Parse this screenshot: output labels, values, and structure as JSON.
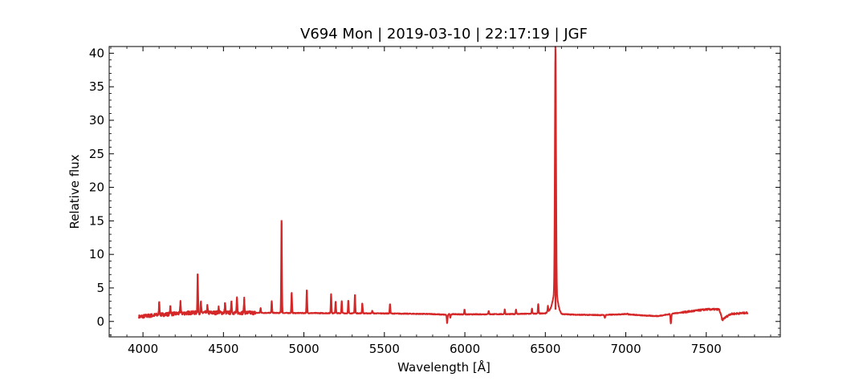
{
  "chart_data": {
    "type": "line",
    "title": "V694 Mon | 2019-03-10 | 22:17:19 | JGF",
    "xlabel": "Wavelength [Å]",
    "ylabel": "Relative flux",
    "xlim": [
      3790,
      7960
    ],
    "ylim": [
      -2.3,
      41
    ],
    "xticks": [
      4000,
      4500,
      5000,
      5500,
      6000,
      6500,
      7000,
      7500
    ],
    "yticks": [
      0,
      5,
      10,
      15,
      20,
      25,
      30,
      35,
      40
    ],
    "grid": false,
    "legend": "none",
    "series": [
      {
        "color": "#d62728",
        "baseline": [
          [
            3975,
            0.7
          ],
          [
            4100,
            1.0
          ],
          [
            4300,
            1.3
          ],
          [
            4600,
            1.3
          ],
          [
            5000,
            1.25
          ],
          [
            5500,
            1.2
          ],
          [
            5800,
            1.1
          ],
          [
            5880,
            1.0
          ],
          [
            5900,
            1.1
          ],
          [
            6000,
            1.05
          ],
          [
            6300,
            1.1
          ],
          [
            6500,
            1.2
          ],
          [
            6550,
            2.0
          ],
          [
            6600,
            1.1
          ],
          [
            6700,
            1.0
          ],
          [
            6850,
            0.95
          ],
          [
            7000,
            1.1
          ],
          [
            7100,
            0.9
          ],
          [
            7200,
            0.8
          ],
          [
            7300,
            1.2
          ],
          [
            7400,
            1.5
          ],
          [
            7500,
            1.8
          ],
          [
            7580,
            1.8
          ],
          [
            7600,
            0.3
          ],
          [
            7650,
            1.1
          ],
          [
            7700,
            1.2
          ],
          [
            7760,
            1.3
          ]
        ],
        "emission_lines": [
          [
            4101,
            3.0
          ],
          [
            4170,
            2.4
          ],
          [
            4233,
            3.0
          ],
          [
            4340,
            7.1
          ],
          [
            4360,
            2.9
          ],
          [
            4400,
            2.3
          ],
          [
            4470,
            2.1
          ],
          [
            4510,
            2.8
          ],
          [
            4550,
            3.1
          ],
          [
            4584,
            3.5
          ],
          [
            4629,
            3.3
          ],
          [
            4731,
            2.0
          ],
          [
            4800,
            3.0
          ],
          [
            4861,
            15.1
          ],
          [
            4924,
            4.3
          ],
          [
            5018,
            4.7
          ],
          [
            5169,
            4.1
          ],
          [
            5197,
            3.0
          ],
          [
            5235,
            3.0
          ],
          [
            5276,
            3.1
          ],
          [
            5317,
            4.0
          ],
          [
            5363,
            2.7
          ],
          [
            5425,
            1.6
          ],
          [
            5535,
            2.6
          ],
          [
            5998,
            1.8
          ],
          [
            6148,
            1.6
          ],
          [
            6248,
            1.8
          ],
          [
            6318,
            1.8
          ],
          [
            6417,
            1.9
          ],
          [
            6456,
            2.6
          ],
          [
            6516,
            2.3
          ],
          [
            6563,
            38.8
          ],
          [
            7008,
            1.2
          ]
        ],
        "absorption_lines": [
          [
            5890,
            -0.3
          ],
          [
            5910,
            0.6
          ],
          [
            6870,
            0.5
          ],
          [
            7280,
            -0.3
          ],
          [
            7600,
            0.1
          ]
        ]
      }
    ]
  }
}
